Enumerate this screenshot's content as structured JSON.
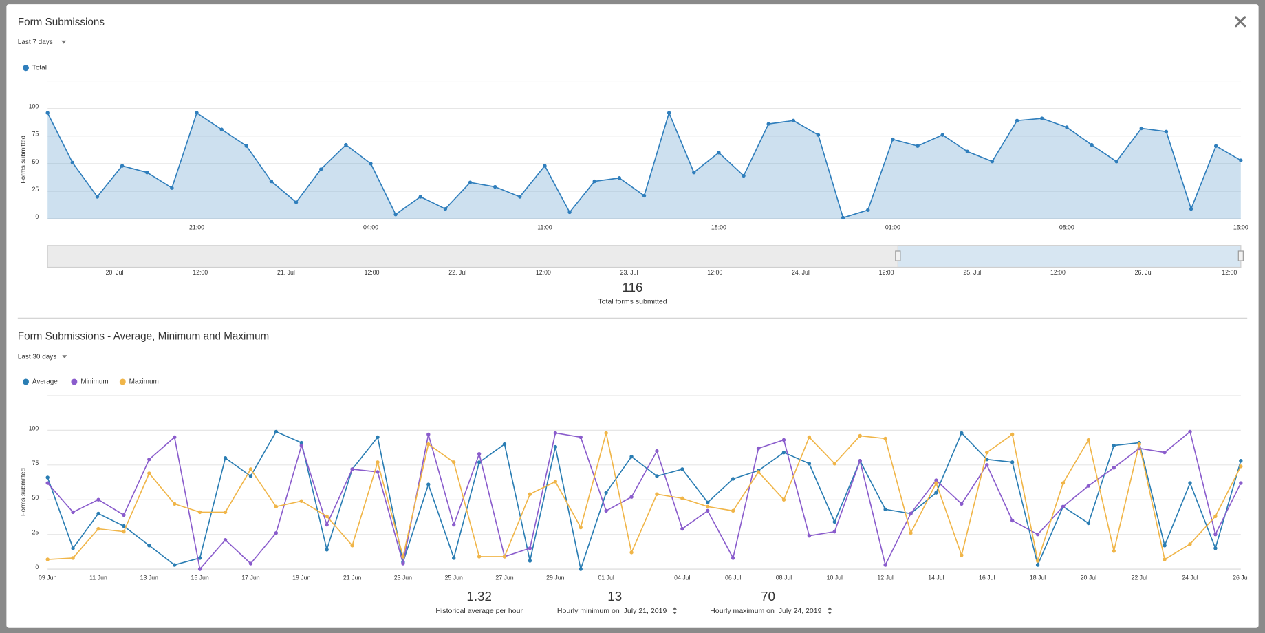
{
  "chart_data": [
    {
      "type": "area",
      "title": "Form Submissions",
      "range": "Last 7 days",
      "y_label": "Forms submitted",
      "categories": [
        null,
        null,
        null,
        null,
        null,
        null,
        "21:00",
        null,
        null,
        null,
        null,
        null,
        null,
        "04:00",
        null,
        null,
        null,
        null,
        null,
        null,
        "11:00",
        null,
        null,
        null,
        null,
        null,
        null,
        "18:00",
        null,
        null,
        null,
        null,
        null,
        null,
        "01:00",
        null,
        null,
        null,
        null,
        null,
        null,
        "08:00",
        null,
        null,
        null,
        null,
        null,
        null,
        "15:00"
      ],
      "series": [
        {
          "name": "Total",
          "color": "#2f7ebc",
          "values": [
            96,
            51,
            20,
            48,
            42,
            28,
            96,
            81,
            66,
            34,
            15,
            45,
            67,
            50,
            4,
            20,
            9,
            33,
            29,
            20,
            48,
            6,
            34,
            37,
            21,
            96,
            42,
            60,
            39,
            86,
            89,
            76,
            1,
            8,
            72,
            66,
            76,
            61,
            52,
            89,
            91,
            83,
            67,
            52,
            82,
            79,
            9,
            66,
            53
          ]
        }
      ],
      "ylim": [
        0,
        125
      ],
      "yticks": [
        0,
        25,
        50,
        75,
        100
      ],
      "grid": true,
      "navigator": {
        "labels": [
          "20. Jul",
          "12:00",
          "21. Jul",
          "12:00",
          "22. Jul",
          "12:00",
          "23. Jul",
          "12:00",
          "24. Jul",
          "12:00",
          "25. Jul",
          "12:00",
          "26. Jul",
          "12:00"
        ]
      },
      "summaries": [
        {
          "value": 116,
          "label": "Total forms submitted"
        }
      ]
    },
    {
      "type": "line",
      "title": "Form Submissions - Average, Minimum and Maximum",
      "range": "Last 30 days",
      "y_label": "Forms submitted",
      "categories": [
        "09 Jun",
        null,
        "11 Jun",
        null,
        "13 Jun",
        null,
        "15 Jun",
        null,
        "17 Jun",
        null,
        "19 Jun",
        null,
        "21 Jun",
        null,
        "23 Jun",
        null,
        "25 Jun",
        null,
        "27 Jun",
        null,
        "29 Jun",
        null,
        "01 Jul",
        null,
        null,
        "04 Jul",
        null,
        "06 Jul",
        null,
        "08 Jul",
        null,
        "10 Jul",
        null,
        "12 Jul",
        null,
        "14 Jul",
        null,
        "16 Jul",
        null,
        "18 Jul",
        null,
        "20 Jul",
        null,
        "22 Jul",
        null,
        "24 Jul",
        null,
        "26 Jul"
      ],
      "series": [
        {
          "name": "Average",
          "color": "#2a7db3",
          "values": [
            66,
            15,
            40,
            31,
            17,
            3,
            8,
            80,
            67,
            99,
            91,
            14,
            72,
            95,
            5,
            61,
            8,
            77,
            90,
            6,
            88,
            0,
            55,
            81,
            67,
            72,
            48,
            65,
            71,
            84,
            76,
            34,
            78,
            43,
            40,
            55,
            98,
            79,
            77,
            3,
            45,
            33,
            89,
            91,
            17,
            62,
            15,
            78
          ]
        },
        {
          "name": "Minimum",
          "color": "#8a5ccc",
          "values": [
            62,
            41,
            50,
            39,
            79,
            95,
            0,
            21,
            4,
            26,
            89,
            32,
            72,
            70,
            4,
            97,
            32,
            83,
            9,
            15,
            98,
            95,
            42,
            52,
            85,
            29,
            42,
            8,
            87,
            93,
            24,
            27,
            78,
            3,
            40,
            64,
            47,
            75,
            35,
            25,
            45,
            60,
            73,
            87,
            84,
            99,
            25,
            62
          ]
        },
        {
          "name": "Maximum",
          "color": "#f0b548",
          "values": [
            7,
            8,
            29,
            27,
            69,
            47,
            41,
            41,
            72,
            45,
            49,
            38,
            17,
            77,
            9,
            90,
            77,
            9,
            9,
            54,
            63,
            30,
            98,
            12,
            54,
            51,
            45,
            42,
            70,
            50,
            95,
            76,
            96,
            94,
            26,
            62,
            10,
            84,
            97,
            6,
            62,
            93,
            13,
            90,
            7,
            18,
            38,
            74
          ]
        }
      ],
      "ylim": [
        0,
        125
      ],
      "yticks": [
        0,
        25,
        50,
        75,
        100
      ],
      "grid": true,
      "summaries": [
        {
          "value": 1.32,
          "label": "Historical average per hour"
        },
        {
          "value": 13,
          "label": "Hourly minimum on",
          "date": "July 21, 2019"
        },
        {
          "value": 70,
          "label": "Hourly maximum on",
          "date": "July 24, 2019"
        }
      ]
    }
  ]
}
